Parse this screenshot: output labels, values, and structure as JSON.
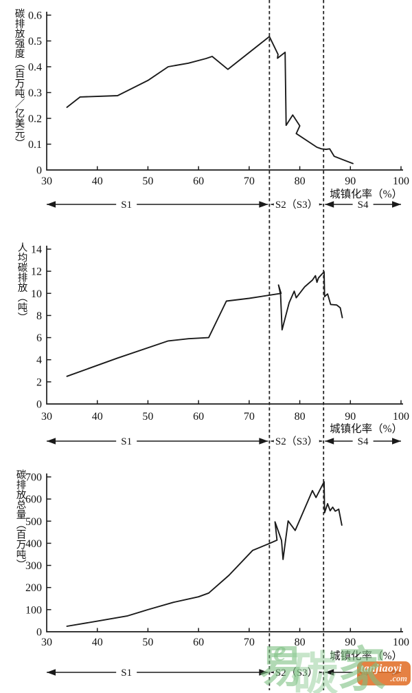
{
  "x_axis": {
    "label": "城镇化率（%）",
    "min": 30,
    "max": 100,
    "ticks": [
      30,
      40,
      50,
      60,
      70,
      80,
      90,
      100
    ]
  },
  "stages": {
    "s1": "S1",
    "s2": "S2（S3）",
    "s4": "S4",
    "boundaries": [
      74,
      84.7
    ]
  },
  "watermark": {
    "swirl": "e",
    "char_1": "易",
    "char_2": "碳",
    "char_3": "家",
    "brand": "tanjiaoyi",
    "suffix": ".com",
    "green": "#7dc082",
    "orange": "#e2702a"
  },
  "chart_data": [
    {
      "type": "line",
      "title": "",
      "ylabel": "碳排放强度（百万吨／亿美元）",
      "xlabel": "城镇化率（%）",
      "xlim": [
        30,
        100
      ],
      "ylim": [
        0,
        0.6
      ],
      "yticks": [
        0,
        0.1,
        0.2,
        0.3,
        0.4,
        0.5,
        0.6
      ],
      "xticks": [
        30,
        40,
        50,
        60,
        70,
        80,
        90,
        100
      ],
      "grid": false,
      "legend": "none",
      "line_color": "#1a1a1a",
      "points": [
        [
          34,
          0.243
        ],
        [
          36.6,
          0.283
        ],
        [
          44,
          0.288
        ],
        [
          50,
          0.347
        ],
        [
          54,
          0.4
        ],
        [
          58,
          0.414
        ],
        [
          61.5,
          0.432
        ],
        [
          62.7,
          0.44
        ],
        [
          65.8,
          0.39
        ],
        [
          74,
          0.517
        ],
        [
          75.7,
          0.448
        ],
        [
          75.6,
          0.433
        ],
        [
          77.1,
          0.456
        ],
        [
          77.3,
          0.173
        ],
        [
          78.6,
          0.213
        ],
        [
          80.0,
          0.171
        ],
        [
          79.3,
          0.141
        ],
        [
          83.4,
          0.088
        ],
        [
          84.3,
          0.082
        ],
        [
          85.2,
          0.08
        ],
        [
          85.9,
          0.082
        ],
        [
          86.8,
          0.053
        ],
        [
          88.5,
          0.04
        ],
        [
          90.5,
          0.025
        ]
      ]
    },
    {
      "type": "line",
      "title": "",
      "ylabel": "人均碳排放（吨）",
      "xlabel": "城镇化率（%）",
      "xlim": [
        30,
        100
      ],
      "ylim": [
        0,
        14
      ],
      "yticks": [
        0,
        2,
        4,
        6,
        8,
        10,
        12,
        14
      ],
      "xticks": [
        30,
        40,
        50,
        60,
        70,
        80,
        90,
        100
      ],
      "grid": false,
      "legend": "none",
      "line_color": "#1a1a1a",
      "points": [
        [
          34,
          2.5
        ],
        [
          44,
          4.15
        ],
        [
          54,
          5.7
        ],
        [
          58,
          5.9
        ],
        [
          62,
          6.0
        ],
        [
          65.5,
          9.3
        ],
        [
          70,
          9.55
        ],
        [
          76.3,
          10.0
        ],
        [
          75.8,
          10.75
        ],
        [
          76.2,
          9.9
        ],
        [
          76.5,
          6.7
        ],
        [
          77.9,
          9.15
        ],
        [
          78.9,
          10.2
        ],
        [
          79.3,
          9.6
        ],
        [
          81,
          10.6
        ],
        [
          82.5,
          11.2
        ],
        [
          83.1,
          11.6
        ],
        [
          83.4,
          11.0
        ],
        [
          83.7,
          11.4
        ],
        [
          84.8,
          11.95
        ],
        [
          84.9,
          9.7
        ],
        [
          85.5,
          9.95
        ],
        [
          86.1,
          9.0
        ],
        [
          87.3,
          8.95
        ],
        [
          88,
          8.7
        ],
        [
          88.4,
          7.8
        ]
      ]
    },
    {
      "type": "line",
      "title": "",
      "ylabel": "碳排放总量（百万吨）",
      "xlabel": "城镇化率（%）",
      "xlim": [
        30,
        100
      ],
      "ylim": [
        0,
        700
      ],
      "yticks": [
        0,
        100,
        200,
        300,
        400,
        500,
        600,
        700
      ],
      "xticks": [
        30,
        40,
        50,
        60,
        70,
        80,
        90,
        100
      ],
      "grid": false,
      "legend": "none",
      "line_color": "#1a1a1a",
      "points": [
        [
          34,
          25
        ],
        [
          40,
          48
        ],
        [
          46,
          72
        ],
        [
          50,
          100
        ],
        [
          55,
          133
        ],
        [
          60,
          158
        ],
        [
          62,
          175
        ],
        [
          66,
          255
        ],
        [
          70.7,
          368
        ],
        [
          74,
          399
        ],
        [
          75.5,
          414
        ],
        [
          75.1,
          497
        ],
        [
          76.4,
          413
        ],
        [
          76.7,
          327
        ],
        [
          77.1,
          398
        ],
        [
          77.7,
          501
        ],
        [
          79.1,
          458
        ],
        [
          82.5,
          638
        ],
        [
          83.2,
          607
        ],
        [
          84.8,
          678
        ],
        [
          84.9,
          538
        ],
        [
          85.5,
          579
        ],
        [
          86.0,
          547
        ],
        [
          86.5,
          563
        ],
        [
          87.0,
          545
        ],
        [
          87.7,
          554
        ],
        [
          88.3,
          482
        ]
      ]
    }
  ]
}
